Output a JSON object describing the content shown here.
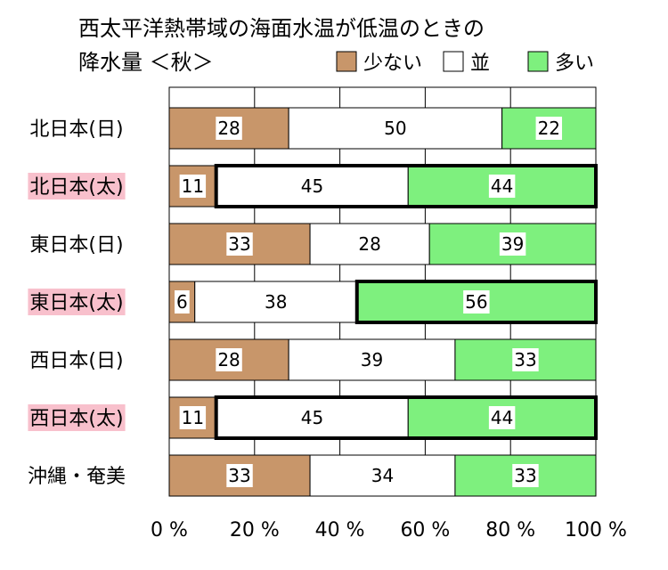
{
  "chart_data": {
    "type": "bar",
    "stacked": "percent",
    "orientation": "horizontal",
    "title": "西太平洋熱帯域の海面水温が低温のときの",
    "subtitle": "降水量 ＜秋＞",
    "categories": [
      "北日本(日)",
      "北日本(太)",
      "東日本(日)",
      "東日本(太)",
      "西日本(日)",
      "西日本(太)",
      "沖縄・奄美"
    ],
    "highlighted_categories": [
      1,
      3,
      5
    ],
    "series": [
      {
        "name": "少ない",
        "color": "#c8966a",
        "values": [
          28,
          11,
          33,
          6,
          28,
          11,
          33
        ]
      },
      {
        "name": "並",
        "color": "#ffffff",
        "values": [
          50,
          45,
          28,
          38,
          39,
          45,
          34
        ]
      },
      {
        "name": "多い",
        "color": "#7ef07e",
        "values": [
          22,
          44,
          39,
          56,
          33,
          44,
          33
        ]
      }
    ],
    "emphasis_boxes": [
      {
        "category": 1,
        "from": 11,
        "to": 100
      },
      {
        "category": 3,
        "from": 44,
        "to": 100
      },
      {
        "category": 5,
        "from": 11,
        "to": 100
      }
    ],
    "xlim": [
      0,
      100
    ],
    "xticks": [
      "0 %",
      "20 %",
      "40 %",
      "60 %",
      "80 %",
      "100 %"
    ],
    "xtick_values": [
      0,
      20,
      40,
      60,
      80,
      100
    ],
    "grid": true,
    "legend_position": "top-right"
  },
  "colors": {
    "highlight_label_bg": "#f8c0cc"
  }
}
